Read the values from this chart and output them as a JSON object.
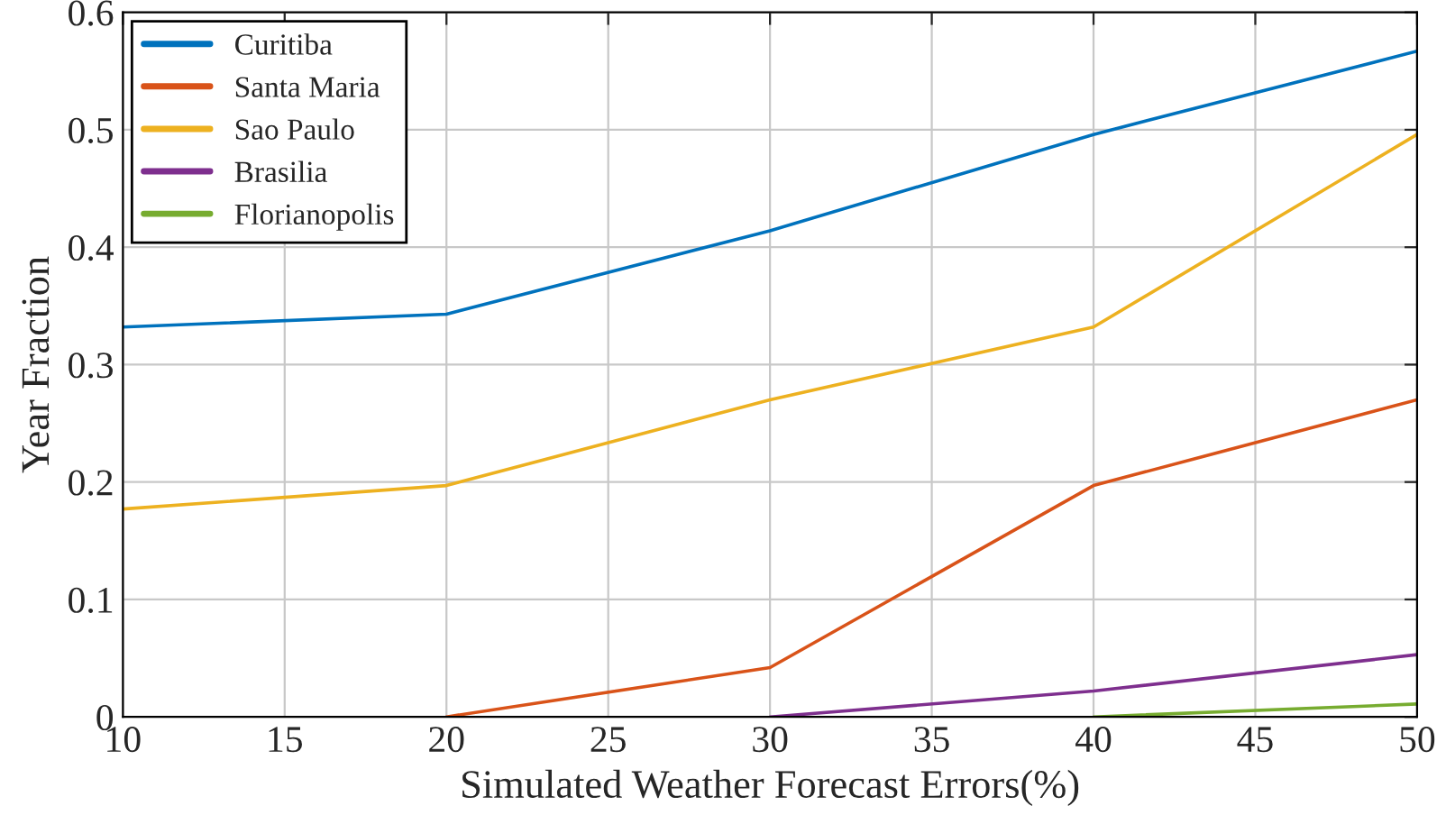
{
  "chart_data": {
    "type": "line",
    "xlabel": "Simulated Weather Forecast Errors(%)",
    "ylabel": "Year Fraction",
    "x": [
      10,
      20,
      30,
      40,
      50
    ],
    "series": [
      {
        "name": "Curitiba",
        "color": "#0072bd",
        "values": [
          0.332,
          0.343,
          0.414,
          0.496,
          0.567
        ]
      },
      {
        "name": "Santa Maria",
        "color": "#d95319",
        "values": [
          null,
          0,
          0.042,
          0.197,
          0.27
        ]
      },
      {
        "name": "Sao Paulo",
        "color": "#edb120",
        "values": [
          0.177,
          0.197,
          0.27,
          0.332,
          0.496
        ]
      },
      {
        "name": "Brasilia",
        "color": "#7e2f8e",
        "values": [
          null,
          null,
          0,
          0.022,
          0.053
        ]
      },
      {
        "name": "Florianopolis",
        "color": "#77ac30",
        "values": [
          null,
          null,
          null,
          0,
          0.011
        ]
      }
    ],
    "xlim": [
      10,
      50
    ],
    "xticks": [
      10,
      15,
      20,
      25,
      30,
      35,
      40,
      45,
      50
    ],
    "ylim": [
      0,
      0.6
    ],
    "yticks": [
      0,
      0.1,
      0.2,
      0.3,
      0.4,
      0.5,
      0.6
    ],
    "grid": true,
    "legend": "top left"
  }
}
